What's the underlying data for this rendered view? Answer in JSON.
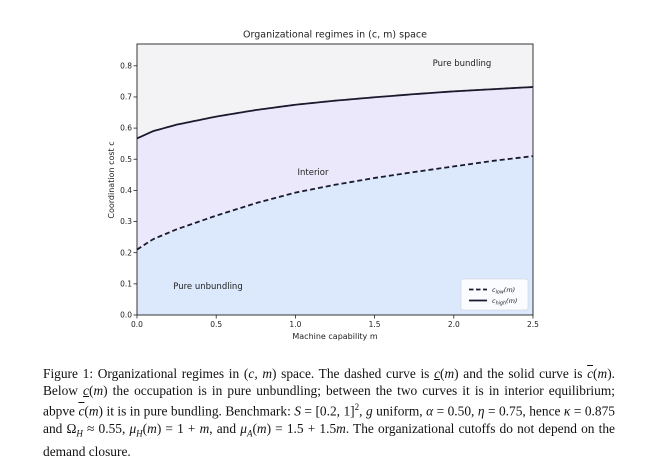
{
  "chart_data": {
    "type": "line",
    "title": "Organizational regimes in (c, m) space",
    "xlabel": "Machine capability m",
    "ylabel": "Coordination cost c",
    "xlim": [
      0.0,
      2.5
    ],
    "ylim": [
      0.0,
      0.87
    ],
    "xticks": [
      "0.0",
      "0.5",
      "1.0",
      "1.5",
      "2.0",
      "2.5"
    ],
    "yticks": [
      "0.0",
      "0.1",
      "0.2",
      "0.3",
      "0.4",
      "0.5",
      "0.6",
      "0.7",
      "0.8"
    ],
    "grid": false,
    "legend_position": "bottom-right",
    "series": [
      {
        "legend": "c_low(m)",
        "style": "dashed",
        "color": "#1a1a2e",
        "x": [
          0.0,
          0.1,
          0.25,
          0.5,
          0.75,
          1.0,
          1.25,
          1.5,
          1.75,
          2.0,
          2.25,
          2.5
        ],
        "y": [
          0.21,
          0.243,
          0.275,
          0.319,
          0.359,
          0.393,
          0.418,
          0.44,
          0.459,
          0.477,
          0.495,
          0.51
        ]
      },
      {
        "legend": "c_high(m)",
        "style": "solid",
        "color": "#1a1a2e",
        "x": [
          0.0,
          0.1,
          0.25,
          0.5,
          0.75,
          1.0,
          1.25,
          1.5,
          1.75,
          2.0,
          2.25,
          2.5
        ],
        "y": [
          0.567,
          0.59,
          0.611,
          0.637,
          0.658,
          0.675,
          0.688,
          0.699,
          0.709,
          0.718,
          0.725,
          0.732
        ]
      }
    ],
    "regions": [
      {
        "label": "Pure bundling",
        "color": "#f3f3f6"
      },
      {
        "label": "Interior",
        "color": "#ece8fb"
      },
      {
        "label": "Pure unbundling",
        "color": "#dce8fb"
      }
    ],
    "legend_entries": [
      {
        "base": "c",
        "sub": "low",
        "arg": "(m)"
      },
      {
        "base": "c",
        "sub": "high",
        "arg": "(m)"
      }
    ]
  },
  "caption": {
    "label": "Figure 1:",
    "text": "Organizational regimes in (c, m) space. The dashed curve is c̲(m) and the solid curve is c̄(m). Below c̲(m) the occupation is in pure unbundling; between the two curves it is in interior equilibrium; abpve c̄(m) it is in pure bundling. Benchmark: S = [0.2, 1]², g uniform, α = 0.50, η = 0.75, hence κ = 0.875 and Ω_H ≈ 0.55, μ_H(m) = 1 + m, and μ_A(m) = 1.5 + 1.5m. The organizational cutoffs do not depend on the demand closure."
  }
}
